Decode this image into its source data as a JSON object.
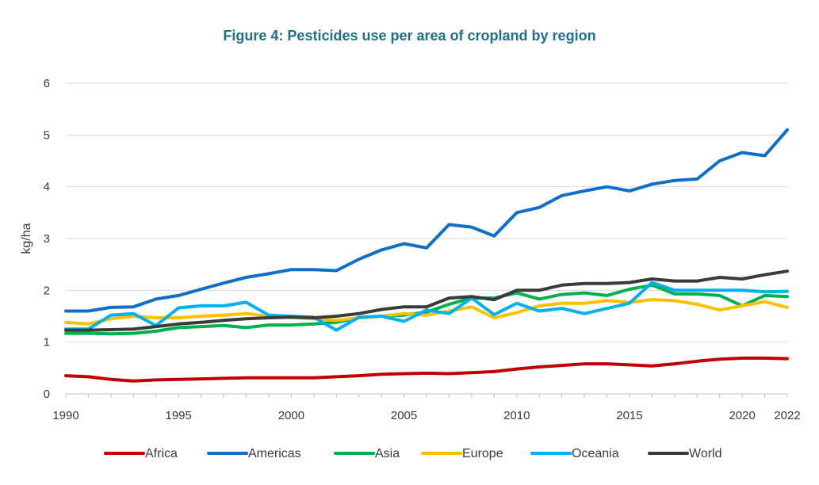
{
  "chart_data": {
    "type": "line",
    "title": "Figure 4: Pesticides use per area of cropland by region",
    "xlabel": "",
    "ylabel": "kg/ha",
    "xlim": [
      1990,
      2022
    ],
    "ylim": [
      0,
      6
    ],
    "x_ticks": [
      1990,
      1995,
      2000,
      2005,
      2010,
      2015,
      2020,
      2022
    ],
    "y_ticks": [
      0,
      1,
      2,
      3,
      4,
      5,
      6
    ],
    "grid": "horizontal",
    "legend_position": "bottom",
    "x": [
      1990,
      1991,
      1992,
      1993,
      1994,
      1995,
      1996,
      1997,
      1998,
      1999,
      2000,
      2001,
      2002,
      2003,
      2004,
      2005,
      2006,
      2007,
      2008,
      2009,
      2010,
      2011,
      2012,
      2013,
      2014,
      2015,
      2016,
      2017,
      2018,
      2019,
      2020,
      2021,
      2022
    ],
    "series": [
      {
        "name": "Africa",
        "color": "#c00000",
        "values": [
          0.35,
          0.33,
          0.28,
          0.25,
          0.27,
          0.28,
          0.29,
          0.3,
          0.31,
          0.31,
          0.31,
          0.31,
          0.33,
          0.35,
          0.38,
          0.39,
          0.4,
          0.39,
          0.41,
          0.43,
          0.48,
          0.52,
          0.55,
          0.58,
          0.58,
          0.56,
          0.54,
          0.58,
          0.63,
          0.67,
          0.69,
          0.69,
          0.68
        ]
      },
      {
        "name": "Americas",
        "color": "#0f6fc6",
        "values": [
          1.6,
          1.6,
          1.67,
          1.68,
          1.83,
          1.9,
          2.02,
          2.14,
          2.25,
          2.32,
          2.4,
          2.4,
          2.38,
          2.6,
          2.78,
          2.9,
          2.82,
          3.27,
          3.22,
          3.05,
          3.5,
          3.6,
          3.83,
          3.92,
          4.0,
          3.92,
          4.05,
          4.12,
          4.15,
          4.5,
          4.66,
          4.6,
          5.1
        ]
      },
      {
        "name": "Asia",
        "color": "#00b050",
        "values": [
          1.17,
          1.17,
          1.16,
          1.17,
          1.21,
          1.28,
          1.3,
          1.32,
          1.28,
          1.33,
          1.33,
          1.35,
          1.38,
          1.47,
          1.5,
          1.52,
          1.58,
          1.73,
          1.85,
          1.85,
          1.95,
          1.83,
          1.92,
          1.95,
          1.9,
          2.02,
          2.1,
          1.93,
          1.93,
          1.9,
          1.7,
          1.9,
          1.88
        ]
      },
      {
        "name": "Europe",
        "color": "#ffc000",
        "values": [
          1.38,
          1.35,
          1.45,
          1.5,
          1.47,
          1.47,
          1.5,
          1.52,
          1.55,
          1.5,
          1.48,
          1.45,
          1.42,
          1.47,
          1.5,
          1.55,
          1.52,
          1.6,
          1.68,
          1.47,
          1.57,
          1.7,
          1.75,
          1.75,
          1.8,
          1.77,
          1.82,
          1.8,
          1.73,
          1.62,
          1.7,
          1.78,
          1.67
        ]
      },
      {
        "name": "Oceania",
        "color": "#00b0f0",
        "values": [
          1.25,
          1.25,
          1.52,
          1.55,
          1.32,
          1.66,
          1.7,
          1.7,
          1.77,
          1.52,
          1.5,
          1.48,
          1.23,
          1.48,
          1.5,
          1.4,
          1.62,
          1.55,
          1.85,
          1.53,
          1.75,
          1.6,
          1.65,
          1.55,
          1.65,
          1.75,
          2.15,
          2.0,
          2.0,
          2.0,
          2.0,
          1.97,
          1.98
        ]
      },
      {
        "name": "World",
        "color": "#3a3a3a",
        "values": [
          1.23,
          1.23,
          1.24,
          1.25,
          1.3,
          1.35,
          1.38,
          1.42,
          1.45,
          1.47,
          1.48,
          1.47,
          1.5,
          1.55,
          1.63,
          1.68,
          1.68,
          1.85,
          1.88,
          1.82,
          2.0,
          2.0,
          2.1,
          2.13,
          2.13,
          2.15,
          2.22,
          2.18,
          2.18,
          2.25,
          2.22,
          2.3,
          2.37
        ]
      }
    ]
  }
}
